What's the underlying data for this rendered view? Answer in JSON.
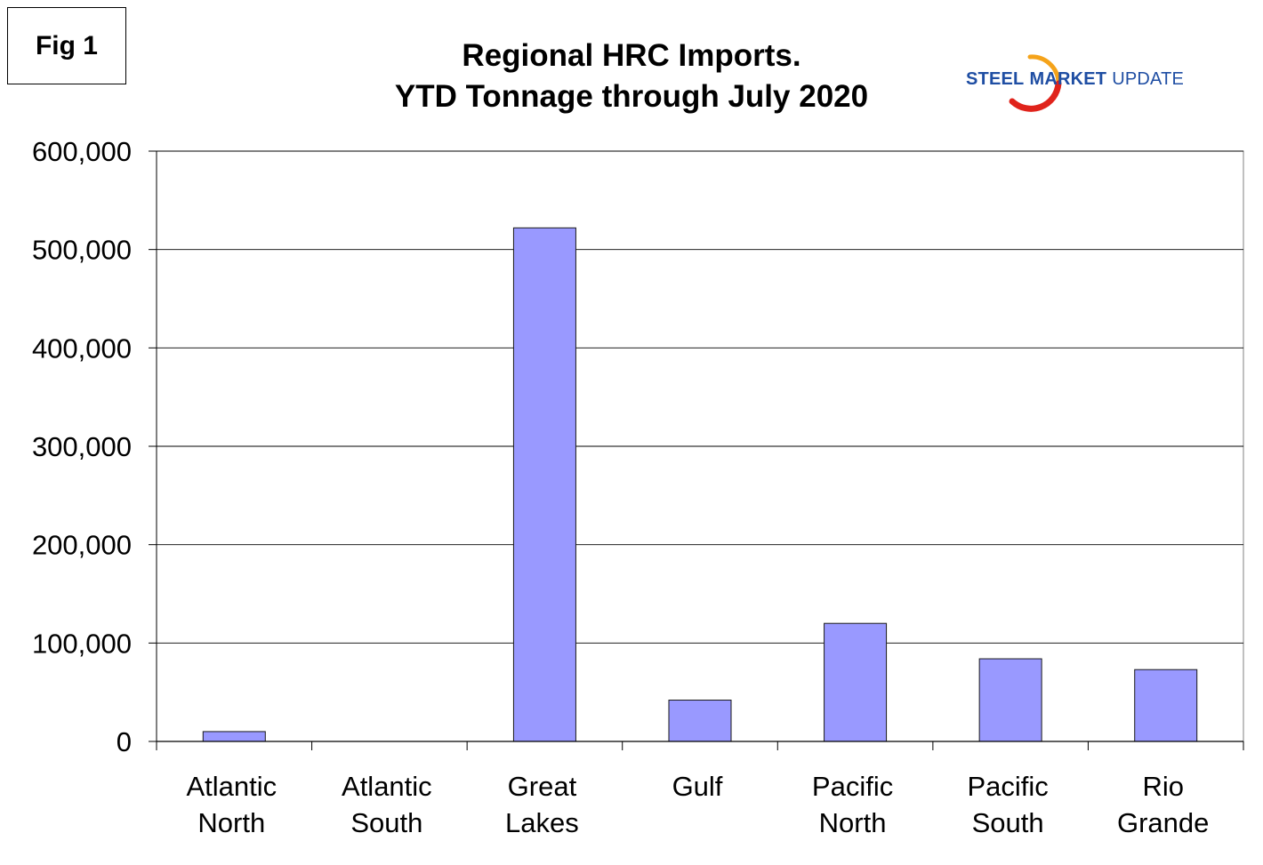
{
  "figure_label": "Fig 1",
  "title_line1": "Regional HRC Imports.",
  "title_line2": "YTD Tonnage through July 2020",
  "logo": {
    "word1": "STEEL",
    "word2": "MARKET",
    "word3": "UPDATE",
    "brand_blue": "#1f4ea3",
    "swoosh_red": "#e0231b",
    "swoosh_orange": "#f5a31a"
  },
  "chart_data": {
    "type": "bar",
    "title": "Regional HRC Imports. YTD Tonnage through July 2020",
    "xlabel": "",
    "ylabel": "",
    "categories": [
      [
        "Atlantic",
        "North"
      ],
      [
        "Atlantic",
        "South"
      ],
      [
        "Great",
        "Lakes"
      ],
      [
        "Gulf"
      ],
      [
        "Pacific",
        "North"
      ],
      [
        "Pacific",
        "South"
      ],
      [
        "Rio",
        "Grande"
      ]
    ],
    "values": [
      10000,
      0,
      522000,
      42000,
      120000,
      84000,
      73000
    ],
    "ylim": [
      0,
      600000
    ],
    "yticks": [
      0,
      100000,
      200000,
      300000,
      400000,
      500000,
      600000
    ],
    "ytick_labels": [
      "0",
      "100,000",
      "200,000",
      "300,000",
      "400,000",
      "500,000",
      "600,000"
    ],
    "grid": true,
    "bar_color": "#9999ff",
    "bar_edge_color": "#1a1a1a"
  }
}
